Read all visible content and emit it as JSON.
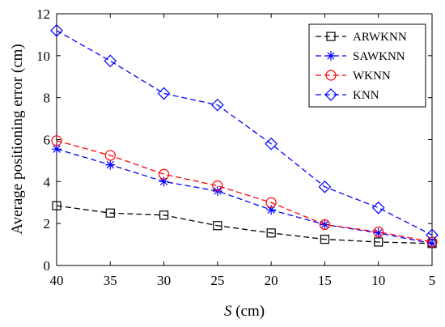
{
  "chart_data": {
    "type": "line",
    "xlabel_italic": "S",
    "xlabel_unit": " (cm)",
    "ylabel": "Average  positioning  error  (cm)",
    "x": [
      40,
      35,
      30,
      25,
      20,
      15,
      10,
      5
    ],
    "x_tick_labels": [
      "40",
      "35",
      "30",
      "25",
      "20",
      "15",
      "10",
      "5"
    ],
    "x_reversed": true,
    "ylim": [
      0,
      12
    ],
    "y_ticks": [
      0,
      2,
      4,
      6,
      8,
      10,
      12
    ],
    "y_tick_labels": [
      "0",
      "2",
      "4",
      "6",
      "8",
      "10",
      "12"
    ],
    "grid": false,
    "legend_position": "top-right",
    "series": [
      {
        "name": "ARWKNN",
        "color": "#000000",
        "marker": "square",
        "values": [
          2.85,
          2.5,
          2.4,
          1.9,
          1.55,
          1.25,
          1.12,
          1.05
        ]
      },
      {
        "name": "SAWKNN",
        "color": "#0000ff",
        "marker": "asterisk",
        "values": [
          5.55,
          4.8,
          4.0,
          3.55,
          2.65,
          1.95,
          1.55,
          1.05
        ]
      },
      {
        "name": "WKNN",
        "color": "#ff0000",
        "marker": "circle",
        "values": [
          5.95,
          5.25,
          4.35,
          3.8,
          3.0,
          1.95,
          1.6,
          1.12
        ]
      },
      {
        "name": "KNN",
        "color": "#0000ff",
        "marker": "diamond",
        "values": [
          11.2,
          9.75,
          8.2,
          7.65,
          5.8,
          3.75,
          2.75,
          1.45
        ]
      }
    ]
  }
}
